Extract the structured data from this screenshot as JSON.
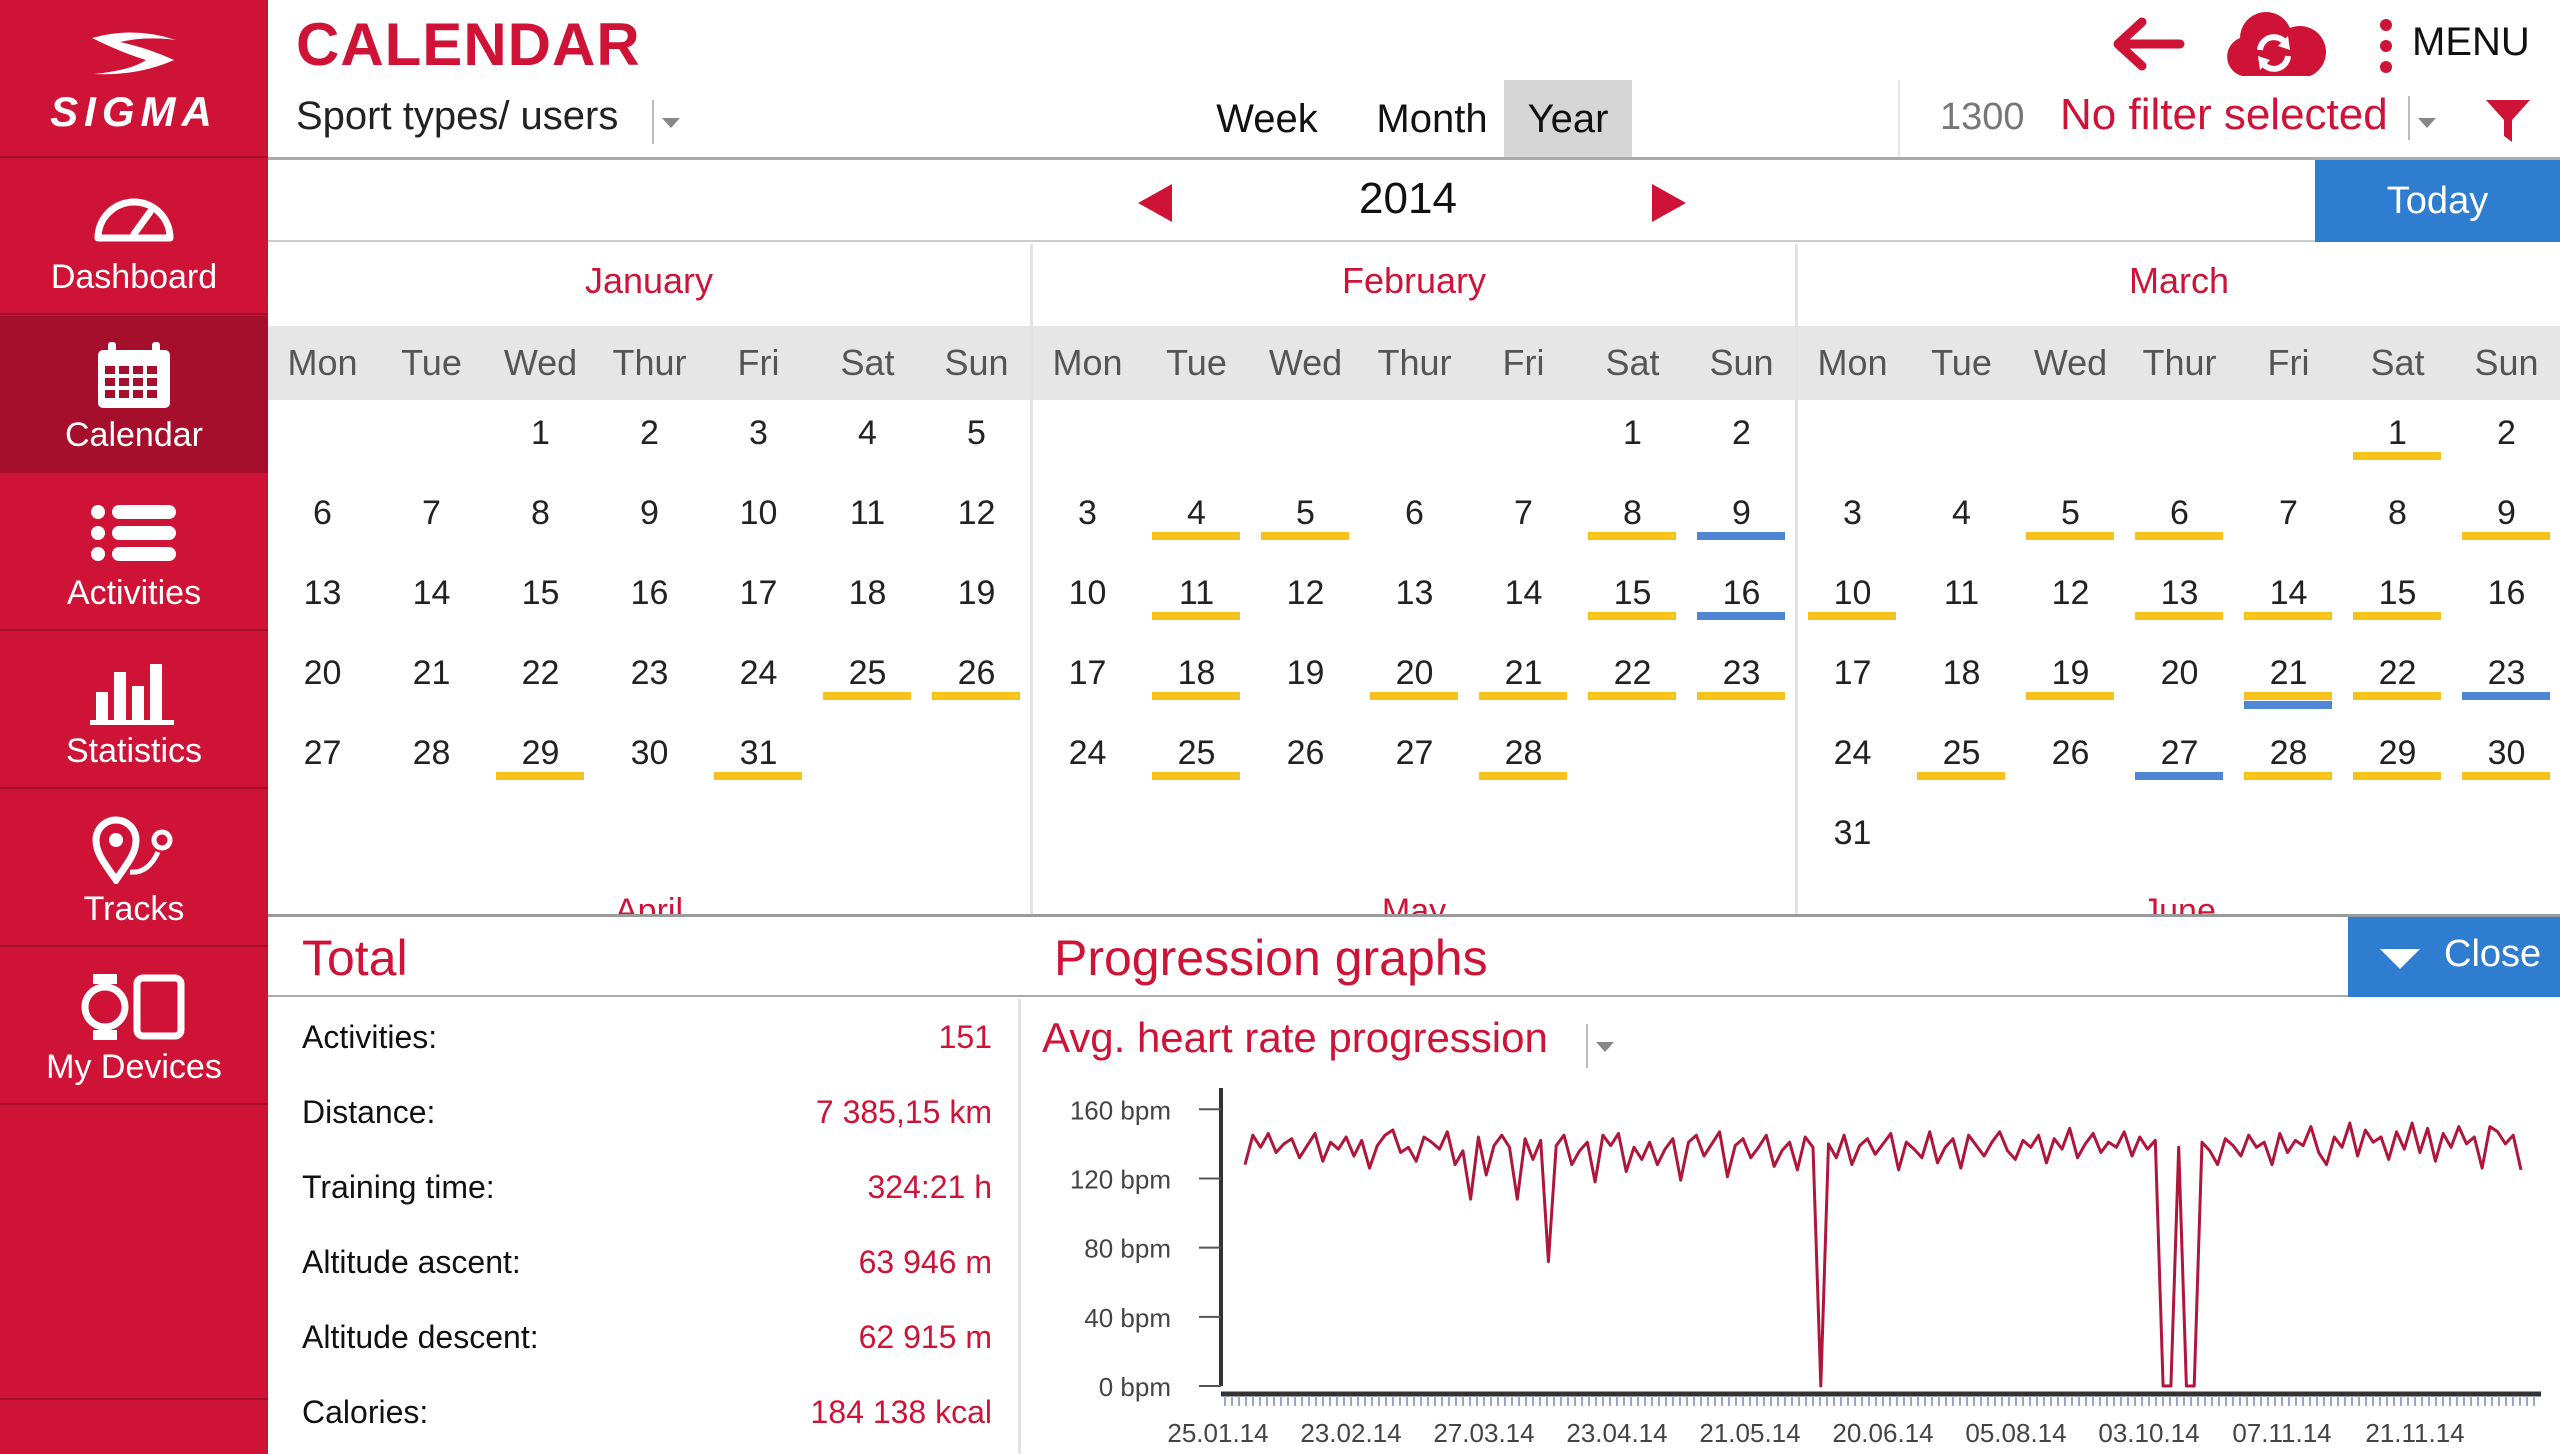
{
  "app": {
    "title": "CALENDAR",
    "logo_text": "SIGMA"
  },
  "sidebar": {
    "items": [
      {
        "label": "Dashboard",
        "icon": "speedometer-icon"
      },
      {
        "label": "Calendar",
        "icon": "calendar-icon",
        "active": true
      },
      {
        "label": "Activities",
        "icon": "list-icon"
      },
      {
        "label": "Statistics",
        "icon": "bar-chart-icon"
      },
      {
        "label": "Tracks",
        "icon": "route-pin-icon"
      },
      {
        "label": "My Devices",
        "icon": "devices-icon"
      }
    ]
  },
  "header": {
    "sport_types": "Sport types/ users",
    "tabs": [
      {
        "label": "Week"
      },
      {
        "label": "Month"
      },
      {
        "label": "Year",
        "active": true
      }
    ],
    "menu_label": "MENU",
    "filter_count": "1300",
    "filter_text": "No filter selected"
  },
  "year_nav": {
    "year": "2014",
    "today_label": "Today"
  },
  "calendar": {
    "weekdays": [
      "Mon",
      "Tue",
      "Wed",
      "Thur",
      "Fri",
      "Sat",
      "Sun"
    ],
    "colors": {
      "yellow": "#f7c21b",
      "blue": "#4f86d6"
    },
    "months": [
      {
        "name": "January",
        "first_weekday": 2,
        "days": 31,
        "marks": {
          "25": [
            "yellow"
          ],
          "26": [
            "yellow"
          ],
          "29": [
            "yellow"
          ],
          "31": [
            "yellow"
          ]
        }
      },
      {
        "name": "February",
        "first_weekday": 5,
        "days": 28,
        "marks": {
          "4": [
            "yellow"
          ],
          "5": [
            "yellow"
          ],
          "8": [
            "yellow"
          ],
          "9": [
            "blue"
          ],
          "11": [
            "yellow"
          ],
          "15": [
            "yellow"
          ],
          "16": [
            "blue"
          ],
          "18": [
            "yellow"
          ],
          "20": [
            "yellow"
          ],
          "21": [
            "yellow"
          ],
          "22": [
            "yellow"
          ],
          "23": [
            "yellow"
          ],
          "25": [
            "yellow"
          ],
          "28": [
            "yellow"
          ]
        }
      },
      {
        "name": "March",
        "first_weekday": 5,
        "days": 31,
        "marks": {
          "1": [
            "yellow"
          ],
          "5": [
            "yellow"
          ],
          "6": [
            "yellow"
          ],
          "9": [
            "yellow"
          ],
          "10": [
            "yellow"
          ],
          "13": [
            "yellow"
          ],
          "14": [
            "yellow"
          ],
          "15": [
            "yellow"
          ],
          "19": [
            "yellow"
          ],
          "21": [
            "yellow",
            "blue"
          ],
          "22": [
            "yellow"
          ],
          "23": [
            "blue"
          ],
          "25": [
            "yellow"
          ],
          "27": [
            "blue"
          ],
          "28": [
            "yellow"
          ],
          "29": [
            "yellow"
          ],
          "30": [
            "yellow"
          ]
        }
      }
    ],
    "next_months": [
      "April",
      "May",
      "June"
    ]
  },
  "panel": {
    "total_title": "Total",
    "progression_title": "Progression graphs",
    "close_label": "Close",
    "totals": [
      {
        "label": "Activities:",
        "value": "151"
      },
      {
        "label": "Distance:",
        "value": "7 385,15 km"
      },
      {
        "label": "Training time:",
        "value": "324:21 h"
      },
      {
        "label": "Altitude ascent:",
        "value": "63 946 m"
      },
      {
        "label": "Altitude descent:",
        "value": "62 915 m"
      },
      {
        "label": "Calories:",
        "value": "184 138 kcal"
      }
    ],
    "graph_selector": "Avg. heart rate progression"
  },
  "chart_data": {
    "type": "line",
    "title": "Avg. heart rate progression",
    "y_ticks": [
      "160 bpm",
      "120 bpm",
      "80 bpm",
      "40 bpm",
      "0 bpm"
    ],
    "y_tick_values": [
      160,
      120,
      80,
      40,
      0
    ],
    "ylim": [
      0,
      170
    ],
    "x_ticks": [
      "25.01.14",
      "23.02.14",
      "27.03.14",
      "23.04.14",
      "21.05.14",
      "20.06.14",
      "05.08.14",
      "03.10.14",
      "07.11.14",
      "21.11.14"
    ],
    "color": "#b0153a",
    "series": [
      {
        "values": [
          128,
          145,
          138,
          146,
          135,
          140,
          143,
          132,
          139,
          146,
          130,
          141,
          137,
          144,
          133,
          142,
          126,
          139,
          145,
          148,
          135,
          138,
          130,
          144,
          141,
          137,
          147,
          128,
          136,
          108,
          144,
          122,
          139,
          145,
          138,
          108,
          143,
          131,
          142,
          72,
          139,
          145,
          128,
          136,
          141,
          118,
          145,
          139,
          146,
          124,
          138,
          131,
          141,
          128,
          137,
          143,
          119,
          141,
          145,
          133,
          140,
          147,
          121,
          139,
          143,
          132,
          138,
          145,
          127,
          136,
          141,
          125,
          144,
          138,
          0,
          140,
          132,
          145,
          128,
          139,
          143,
          134,
          140,
          146,
          125,
          141,
          137,
          132,
          147,
          129,
          138,
          143,
          126,
          145,
          139,
          133,
          141,
          147,
          136,
          131,
          142,
          138,
          145,
          129,
          143,
          137,
          149,
          132,
          140,
          146,
          135,
          141,
          138,
          147,
          133,
          144,
          137,
          142,
          0,
          0,
          138,
          0,
          0,
          141,
          136,
          128,
          143,
          139,
          133,
          145,
          138,
          141,
          128,
          146,
          135,
          142,
          139,
          150,
          135,
          128,
          144,
          138,
          152,
          133,
          148,
          141,
          144,
          131,
          147,
          137,
          152,
          135,
          149,
          130,
          146,
          138,
          150,
          140,
          144,
          126,
          150,
          147,
          140,
          145,
          125
        ]
      }
    ]
  }
}
